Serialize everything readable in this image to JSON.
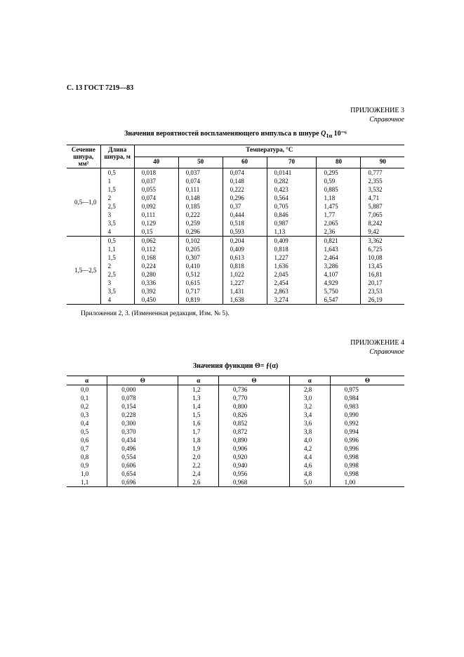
{
  "header": "С. 13 ГОСТ 7219—83",
  "appendix3": {
    "label": "ПРИЛОЖЕНИЕ 3",
    "kind": "Справочное",
    "title_prefix": "Значения вероятностей воспламеняющего импульса в шнуре ",
    "title_var": "Q",
    "title_sub": "1α",
    "title_suffix": " 10⁻⁶",
    "col_sech": "Сечение шнура, мм²",
    "col_dlina": "Длина шнура, м",
    "col_temp": "Температура, °С",
    "temps": [
      "40",
      "50",
      "60",
      "70",
      "80",
      "90"
    ],
    "groups": [
      {
        "section": "0,5—1,0",
        "rows": [
          [
            "0,5",
            "0,018",
            "0,037",
            "0,074",
            "0,0141",
            "0,295",
            "0,777"
          ],
          [
            "1",
            "0,037",
            "0,074",
            "0,148",
            "0,282",
            "0,59",
            "2,355"
          ],
          [
            "1,5",
            "0,055",
            "0,111",
            "0,222",
            "0,423",
            "0,885",
            "3,532"
          ],
          [
            "2",
            "0,074",
            "0,148",
            "0,296",
            "0,564",
            "1,18",
            "4,71"
          ],
          [
            "2,5",
            "0,092",
            "0,185",
            "0,37",
            "0,705",
            "1,475",
            "5,887"
          ],
          [
            "3",
            "0,111",
            "0,222",
            "0,444",
            "0,846",
            "1,77",
            "7,065"
          ],
          [
            "3,5",
            "0,129",
            "0,259",
            "0,518",
            "0,987",
            "2,065",
            "8,242"
          ],
          [
            "4",
            "0,15",
            "0,296",
            "0,593",
            "1,13",
            "2,36",
            "9,42"
          ]
        ]
      },
      {
        "section": "1,5—2,5",
        "rows": [
          [
            "0,5",
            "0,062",
            "0,102",
            "0,204",
            "0,409",
            "0,821",
            "3,362"
          ],
          [
            "1,1",
            "0,112",
            "0,205",
            "0,409",
            "0,818",
            "1,643",
            "6,725"
          ],
          [
            "1,5",
            "0,168",
            "0,307",
            "0,613",
            "1,227",
            "2,464",
            "10,08"
          ],
          [
            "2",
            "0,224",
            "0,410",
            "0,818",
            "1,636",
            "3,286",
            "13,45"
          ],
          [
            "2,5",
            "0,280",
            "0,512",
            "1,022",
            "2,045",
            "4,107",
            "16,81"
          ],
          [
            "3",
            "0,336",
            "0,615",
            "1,227",
            "2,454",
            "4,929",
            "20,17"
          ],
          [
            "3,5",
            "0,392",
            "0,717",
            "1,431",
            "2,863",
            "5,750",
            "23,53"
          ],
          [
            "4",
            "0,450",
            "0,819",
            "1,638",
            "3,274",
            "6,547",
            "26,19"
          ]
        ]
      }
    ],
    "note": "Приложения 2, 3. (Измененная редакция, Изм. № 5)."
  },
  "appendix4": {
    "label": "ПРИЛОЖЕНИЕ 4",
    "kind": "Справочное",
    "title": "Значения функции  Θ= ƒ(α)",
    "head_a": "α",
    "head_t": "Θ",
    "cols": [
      [
        [
          "0,0",
          "0,000"
        ],
        [
          "0,1",
          "0,078"
        ],
        [
          "0,2",
          "0,154"
        ],
        [
          "0,3",
          "0,228"
        ],
        [
          "0,4",
          "0,300"
        ],
        [
          "0,5",
          "0,370"
        ],
        [
          "0,6",
          "0,434"
        ],
        [
          "0,7",
          "0,496"
        ],
        [
          "0,8",
          "0,554"
        ],
        [
          "0,9",
          "0,606"
        ],
        [
          "1,0",
          "0,654"
        ],
        [
          "1,1",
          "0,696"
        ]
      ],
      [
        [
          "1,2",
          "0,736"
        ],
        [
          "1,3",
          "0,770"
        ],
        [
          "1,4",
          "0,800"
        ],
        [
          "1,5",
          "0,826"
        ],
        [
          "1,6",
          "0,852"
        ],
        [
          "1,7",
          "0,872"
        ],
        [
          "1,8",
          "0,890"
        ],
        [
          "1,9",
          "0,906"
        ],
        [
          "2,0",
          "0,920"
        ],
        [
          "2,2",
          "0,940"
        ],
        [
          "2,4",
          "0,956"
        ],
        [
          "2,6",
          "0,968"
        ]
      ],
      [
        [
          "2,8",
          "0,975"
        ],
        [
          "3,0",
          "0,984"
        ],
        [
          "3,2",
          "0,983"
        ],
        [
          "3,4",
          "0,990"
        ],
        [
          "3,6",
          "0,992"
        ],
        [
          "3,8",
          "0,994"
        ],
        [
          "4,0",
          "0,996"
        ],
        [
          "4,2",
          "0,996"
        ],
        [
          "4,4",
          "0,998"
        ],
        [
          "4,6",
          "0,998"
        ],
        [
          "4,8",
          "0,998"
        ],
        [
          "5,0",
          "1,00"
        ]
      ]
    ]
  }
}
